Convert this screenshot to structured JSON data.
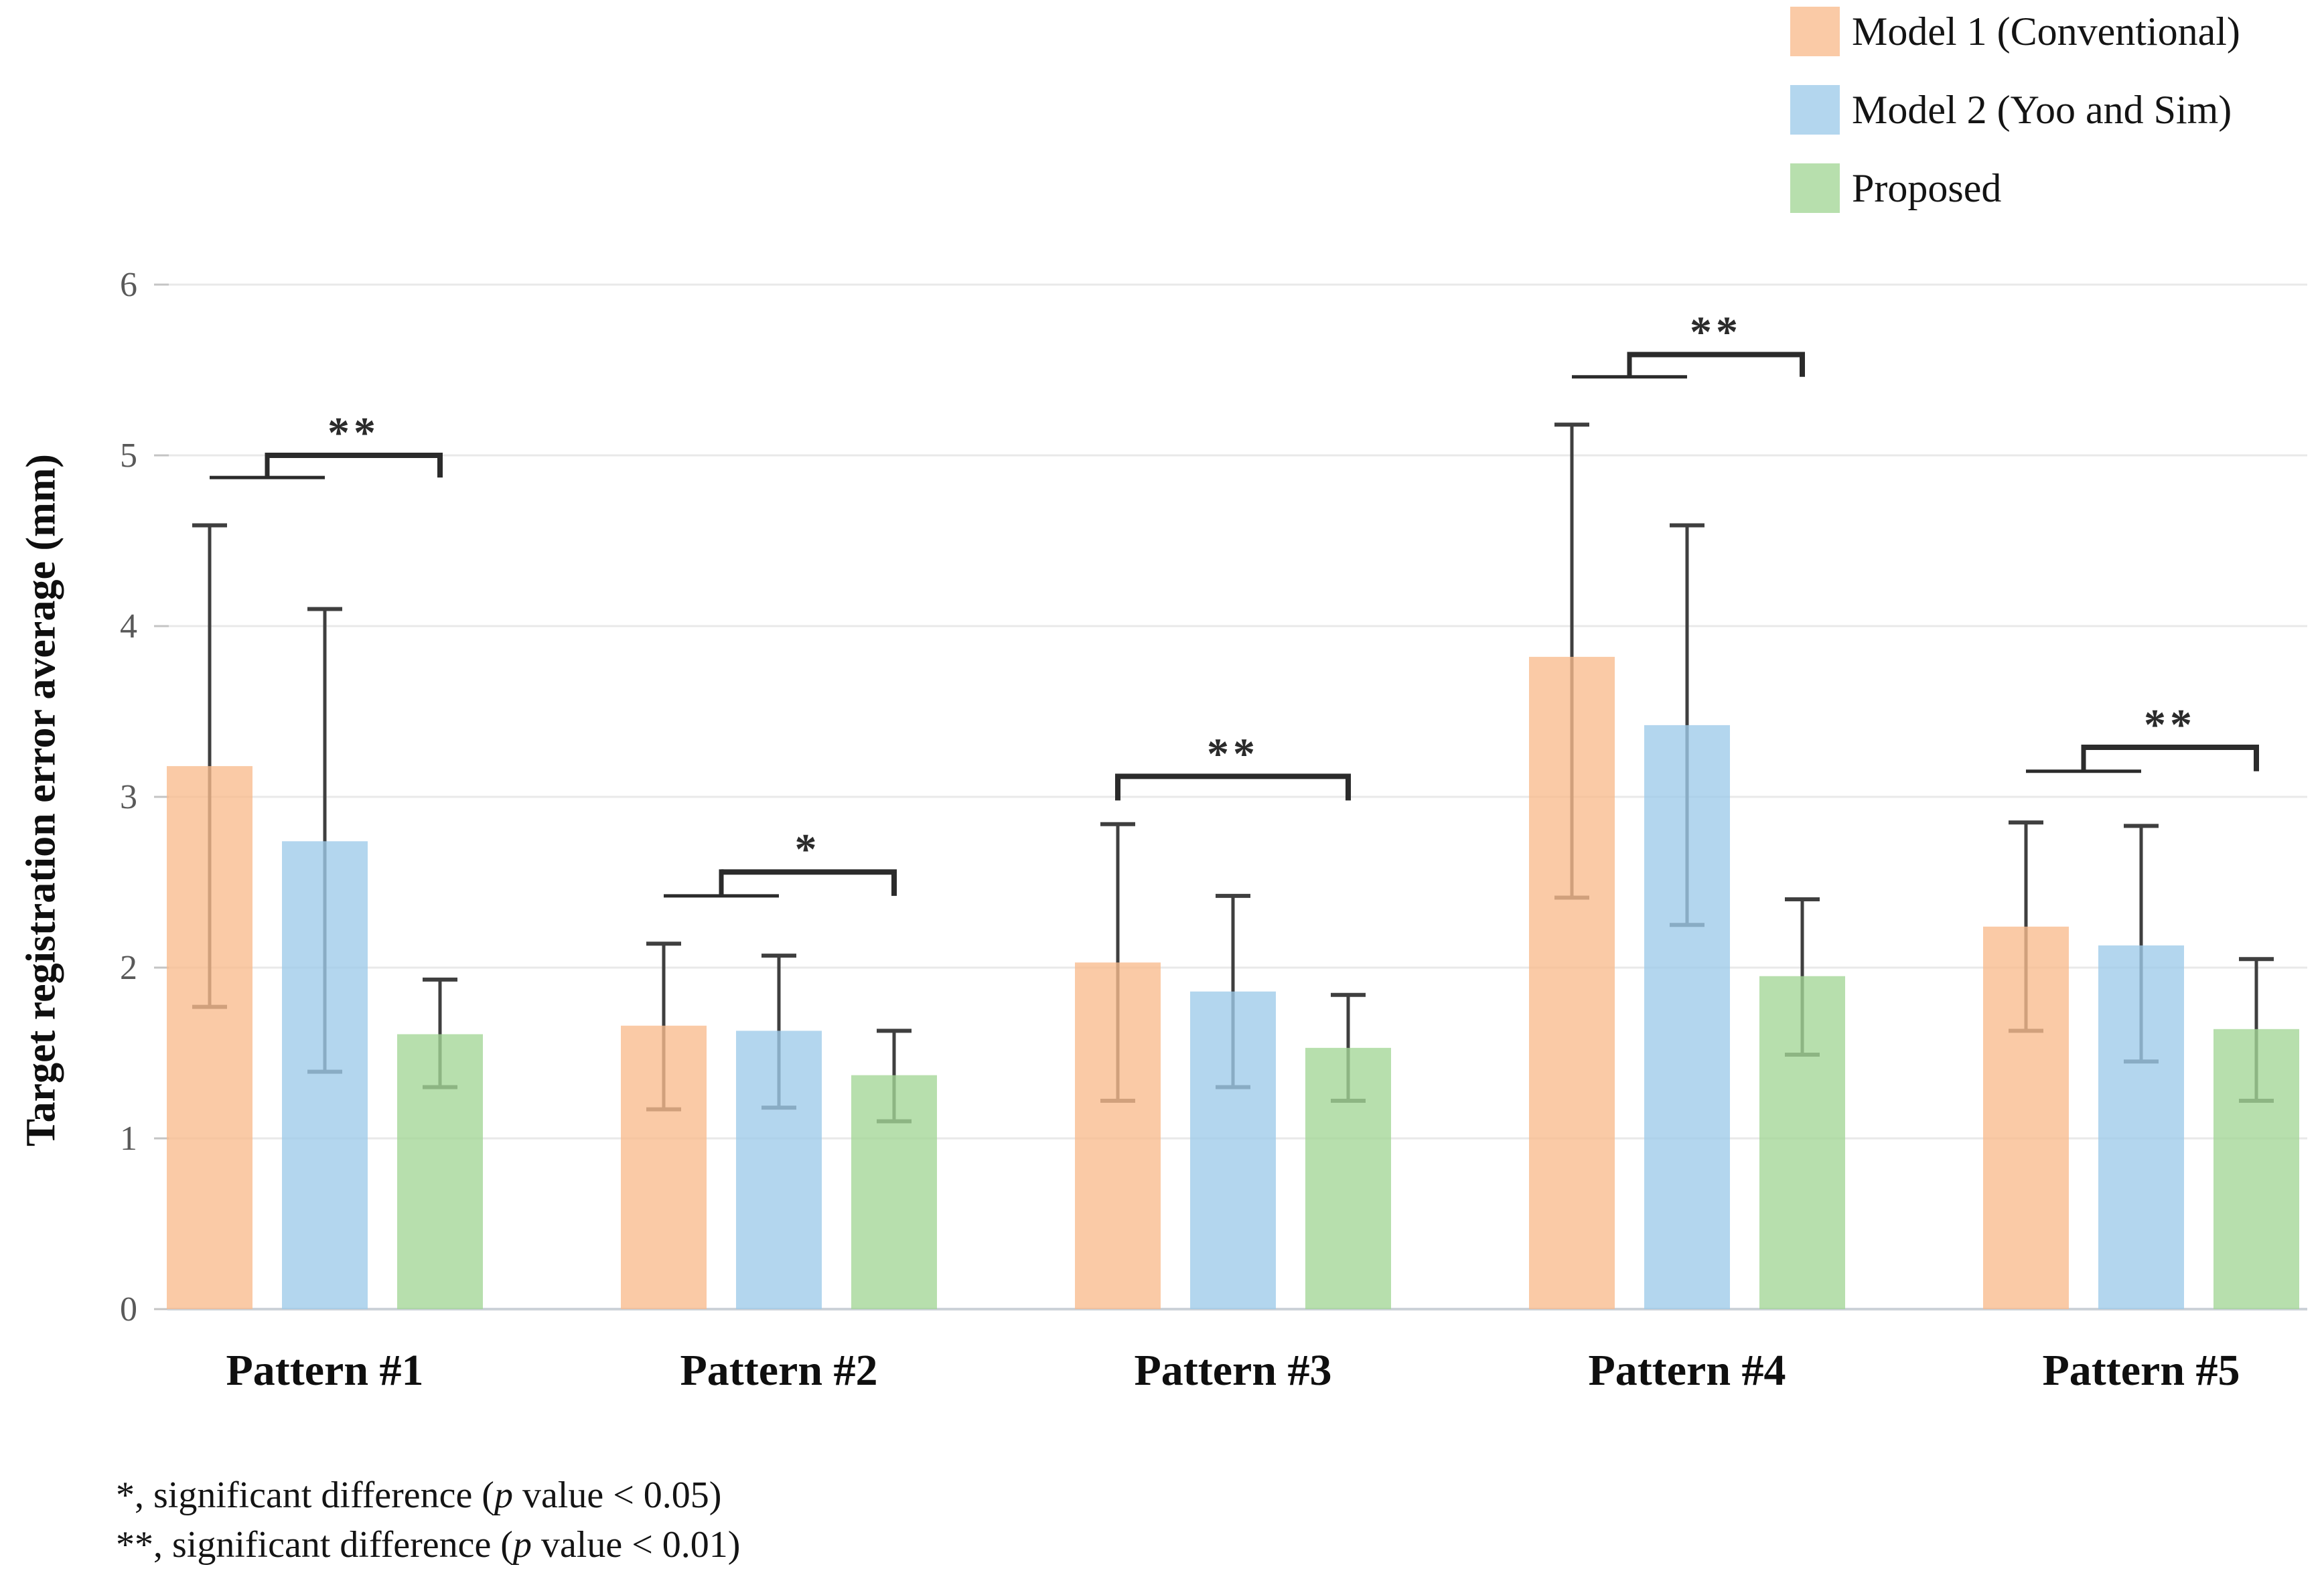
{
  "figure": {
    "background": "#ffffff"
  },
  "legend": {
    "position": "top-right",
    "items": [
      {
        "label": "Model 1 (Conventional)",
        "color": "#FACAA6"
      },
      {
        "label": "Model 2 (Yoo and Sim)",
        "color": "#B3D6EE"
      },
      {
        "label": "Proposed",
        "color": "#B7DFAD"
      }
    ]
  },
  "footnotes": [
    {
      "prefix": "*, significant difference (",
      "italic": "p",
      "suffix": " value < 0.05)"
    },
    {
      "prefix": "**, significant difference (",
      "italic": "p",
      "suffix": " value < 0.01)"
    }
  ],
  "chart_data": {
    "type": "bar",
    "title": "",
    "xlabel": "",
    "ylabel": "Target registration error average (mm)",
    "ylim": [
      0,
      6
    ],
    "yticks": [
      0,
      1,
      2,
      3,
      4,
      5,
      6
    ],
    "grid": true,
    "legend_position": "top-right",
    "categories": [
      "Pattern #1",
      "Pattern #2",
      "Pattern #3",
      "Pattern #4",
      "Pattern #5"
    ],
    "series": [
      {
        "name": "Model 1 (Conventional)",
        "color": "#FACAA6",
        "values": [
          3.18,
          1.66,
          2.03,
          3.82,
          2.24
        ],
        "error_low": [
          1.77,
          1.17,
          1.22,
          2.41,
          1.63
        ],
        "error_high": [
          4.59,
          2.14,
          2.84,
          5.18,
          2.85
        ]
      },
      {
        "name": "Model 2 (Yoo and Sim)",
        "color": "#B3D6EE",
        "values": [
          2.74,
          1.63,
          1.86,
          3.42,
          2.13
        ],
        "error_low": [
          1.39,
          1.18,
          1.3,
          2.25,
          1.45
        ],
        "error_high": [
          4.1,
          2.07,
          2.42,
          4.59,
          2.83
        ]
      },
      {
        "name": "Proposed",
        "color": "#B7DFAD",
        "values": [
          1.61,
          1.37,
          1.53,
          1.95,
          1.64
        ],
        "error_low": [
          1.3,
          1.1,
          1.22,
          1.49,
          1.22
        ],
        "error_high": [
          1.93,
          1.63,
          1.84,
          2.4,
          2.05
        ]
      }
    ],
    "significance": [
      {
        "category_index": 0,
        "symbol": "**",
        "type": "two_level",
        "group_line_value": 4.87,
        "main_line_value": 5.0,
        "compares": "Model1+Model2 vs Proposed"
      },
      {
        "category_index": 1,
        "symbol": "*",
        "type": "two_level",
        "group_line_value": 2.42,
        "main_line_value": 2.56,
        "compares": "Model1+Model2 vs Proposed"
      },
      {
        "category_index": 2,
        "symbol": "**",
        "type": "span",
        "main_line_value": 3.12,
        "compares": "Model1 vs Proposed"
      },
      {
        "category_index": 3,
        "symbol": "**",
        "type": "two_level",
        "group_line_value": 5.46,
        "main_line_value": 5.59,
        "compares": "Model1+Model2 vs Proposed"
      },
      {
        "category_index": 4,
        "symbol": "**",
        "type": "two_level",
        "group_line_value": 3.15,
        "main_line_value": 3.29,
        "compares": "Model1+Model2 vs Proposed"
      }
    ]
  }
}
